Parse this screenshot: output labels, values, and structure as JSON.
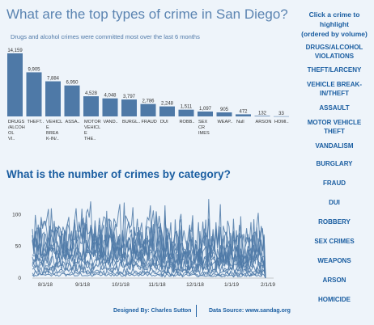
{
  "chart_data": [
    {
      "type": "bar",
      "title": "What are the top types of crime in San Diego?",
      "subtitle": "Drugs and alcohol crimes were committed most over the last 6 months",
      "categories": [
        "DRUGS /ALCOH OL VI..",
        "THEFT..",
        "VEHICL E BREA K-IN/..",
        "ASSA..",
        "MOTOR VEHICL E THE..",
        "VAND..",
        "BURGL..",
        "FRAUD",
        "DUI",
        "ROBB..",
        "SEX CR IMES",
        "WEAP..",
        "Null",
        "ARSON",
        "HOMI.."
      ],
      "values": [
        14159,
        9905,
        7884,
        6950,
        4528,
        4048,
        3797,
        2786,
        2248,
        1511,
        1097,
        905,
        472,
        132,
        33
      ],
      "value_labels": [
        "14,159",
        "9,905",
        "7,884",
        "6,950",
        "4,528",
        "4,048",
        "3,797",
        "2,786",
        "2,248",
        "1,511",
        "1,097",
        "905",
        "472",
        "132",
        "33"
      ],
      "color": "#4e79a7"
    },
    {
      "type": "line",
      "title": "What is the number of crimes by category?",
      "x_ticks": [
        "8/1/18",
        "9/1/18",
        "10/1/18",
        "11/1/18",
        "12/1/18",
        "1/1/19",
        "2/1/19"
      ],
      "y_ticks": [
        "0",
        "50",
        "100"
      ],
      "ylim": [
        0,
        140
      ],
      "color": "#4e79a7"
    }
  ],
  "sidebar": {
    "heading": [
      "Click a crime to",
      "highlight",
      "(ordered by volume)"
    ],
    "items": [
      "DRUGS/ALCOHOL VIOLATIONS",
      "THEFT/LARCENY",
      "VEHICLE BREAK-IN/THEFT",
      "ASSAULT",
      "MOTOR VEHICLE THEFT",
      "VANDALISM",
      "BURGLARY",
      "FRAUD",
      "DUI",
      "ROBBERY",
      "SEX CRIMES",
      "WEAPONS",
      "ARSON",
      "HOMICIDE"
    ]
  },
  "footer": {
    "designer": "Designed By: Charles Sutton",
    "source": "Data Source: www.sandag.org"
  }
}
